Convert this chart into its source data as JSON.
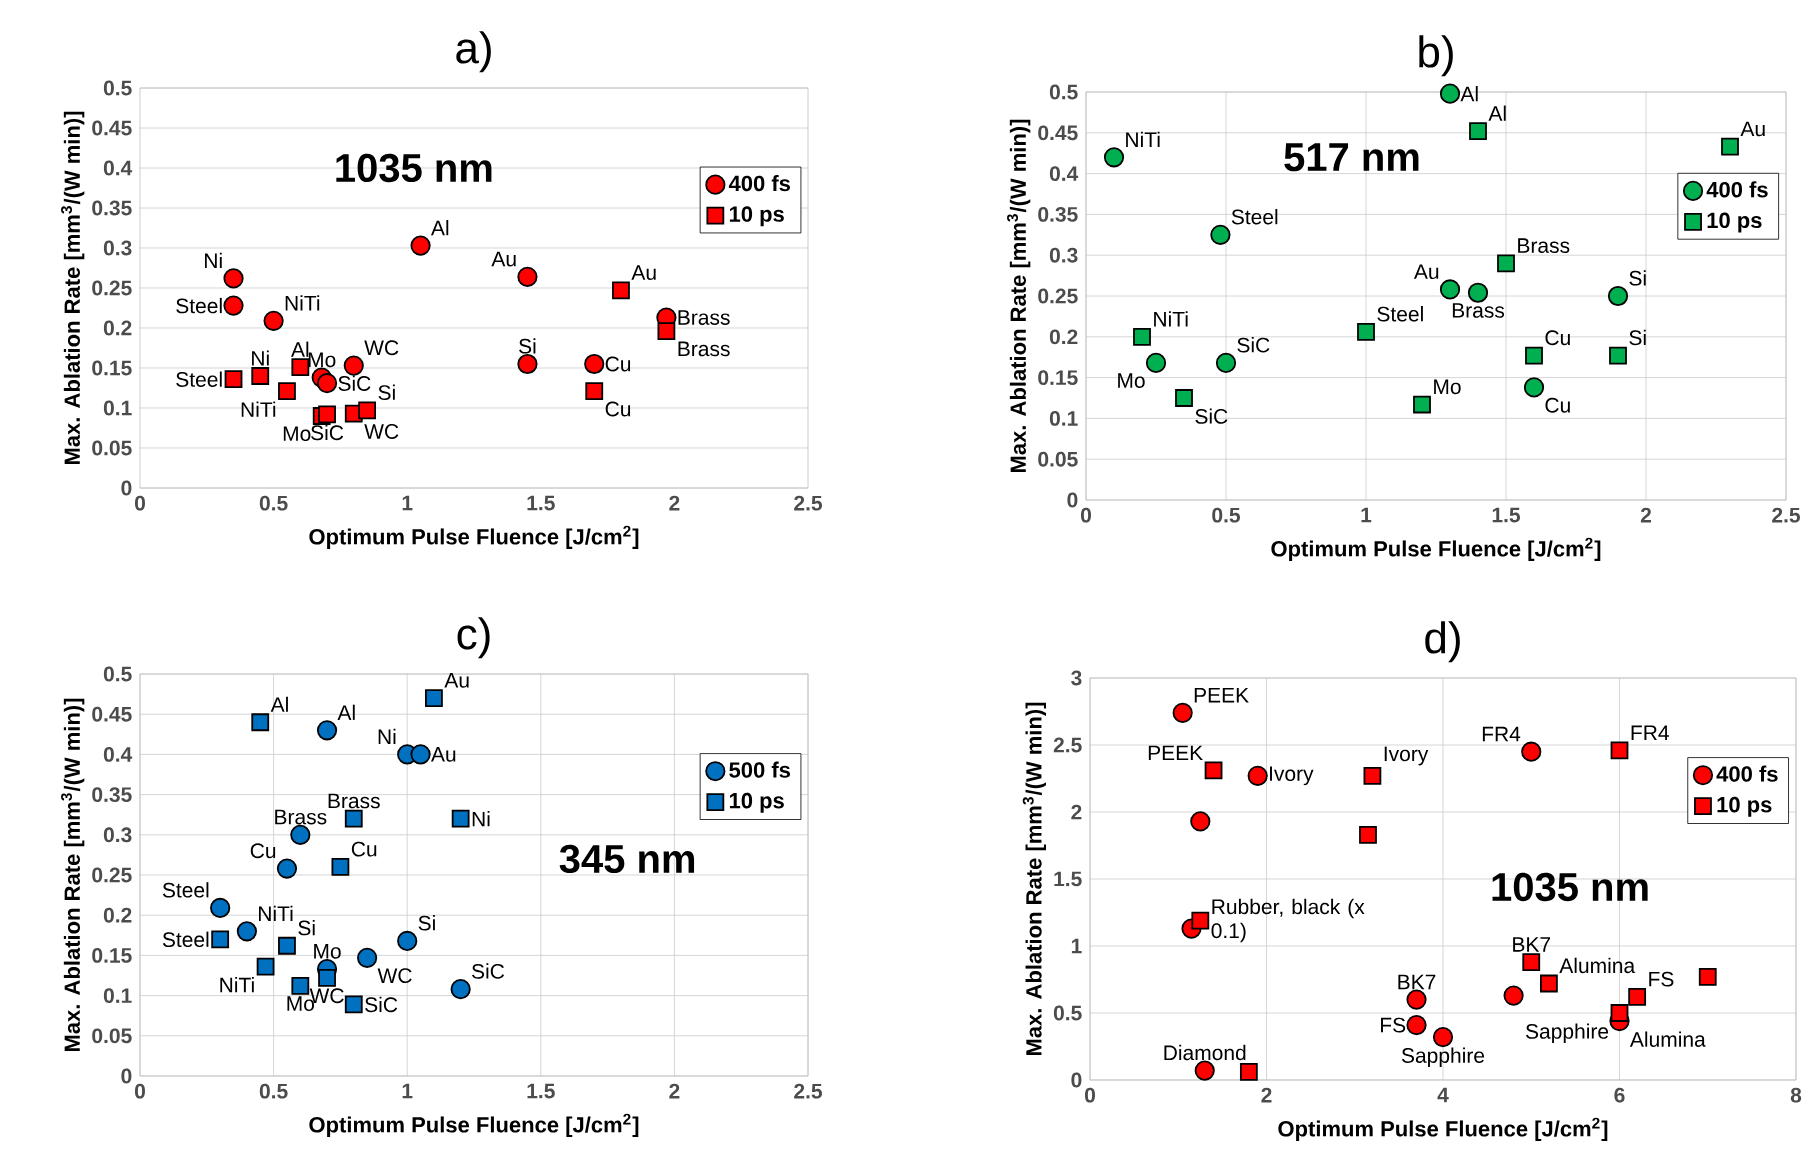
{
  "chart_data": [
    {
      "type": "scatter",
      "title": "a)",
      "xlabel": "Optimum Pulse Fluence [J/cm$^{2}$]",
      "ylabel": "Max. Ablation Rate [mm$^{3}$/(W min)]",
      "xlim": [
        0,
        2.5
      ],
      "ylim": [
        0,
        0.5
      ],
      "xticks": [
        0,
        0.5,
        1,
        1.5,
        2,
        2.5
      ],
      "yticks": [
        0,
        0.05,
        0.1,
        0.15,
        0.2,
        0.25,
        0.3,
        0.35,
        0.4,
        0.45,
        0.5
      ],
      "grid": "y",
      "legend": "right",
      "series": [
        {
          "name": "400 fs",
          "color": "#ff0000",
          "marker": "circle",
          "x": [
            0.35,
            0.35,
            0.5,
            1.05,
            1.45,
            0.68,
            0.7,
            0.8,
            1.45,
            1.7,
            1.97
          ],
          "values": [
            0.262,
            0.228,
            0.209,
            0.303,
            0.264,
            0.138,
            0.131,
            0.153,
            0.155,
            0.155,
            0.213
          ]
        },
        {
          "name": "10 ps",
          "color": "#ff0000",
          "marker": "square",
          "x": [
            0.35,
            0.45,
            0.55,
            0.6,
            0.68,
            0.7,
            0.8,
            0.85,
            1.8,
            1.7,
            1.97
          ],
          "values": [
            0.136,
            0.14,
            0.121,
            0.151,
            0.09,
            0.092,
            0.093,
            0.097,
            0.247,
            0.121,
            0.196
          ]
        }
      ],
      "annotations": [
        "1035 nm",
        {
          "text": "Ni",
          "x": 0.35,
          "y": 0.262
        },
        {
          "text": "Steel",
          "x": 0.35,
          "y": 0.228
        },
        {
          "text": "NiTi",
          "x": 0.5,
          "y": 0.209
        },
        {
          "text": "Al",
          "x": 1.05,
          "y": 0.303
        },
        {
          "text": "Au",
          "x": 1.45,
          "y": 0.264
        },
        {
          "text": "Mo",
          "x": 0.68,
          "y": 0.138
        },
        {
          "text": "SiC",
          "x": 0.7,
          "y": 0.131
        },
        {
          "text": "WC",
          "x": 0.8,
          "y": 0.153
        },
        {
          "text": "Si",
          "x": 1.45,
          "y": 0.155
        },
        {
          "text": "Cu",
          "x": 1.7,
          "y": 0.155
        },
        {
          "text": "Brass",
          "x": 1.97,
          "y": 0.213
        },
        {
          "text": "Steel",
          "x": 0.35,
          "y": 0.136
        },
        {
          "text": "Ni",
          "x": 0.45,
          "y": 0.14
        },
        {
          "text": "NiTi",
          "x": 0.55,
          "y": 0.121
        },
        {
          "text": "Al",
          "x": 0.6,
          "y": 0.151
        },
        {
          "text": "Mo",
          "x": 0.68,
          "y": 0.09
        },
        {
          "text": "SiC",
          "x": 0.7,
          "y": 0.092
        },
        {
          "text": "WC",
          "x": 0.8,
          "y": 0.093
        },
        {
          "text": "Si",
          "x": 0.85,
          "y": 0.097
        },
        {
          "text": "Au",
          "x": 1.8,
          "y": 0.247
        },
        {
          "text": "Cu",
          "x": 1.7,
          "y": 0.121
        },
        {
          "text": "Brass",
          "x": 1.97,
          "y": 0.196
        }
      ]
    },
    {
      "type": "scatter",
      "title": "b)",
      "xlabel": "Optimum Pulse Fluence [J/cm$^{2}$]",
      "ylabel": "Max. Ablation Rate [mm$^{3}$/(W min)]",
      "xlim": [
        0,
        2.5
      ],
      "ylim": [
        0,
        0.5
      ],
      "xticks": [
        0,
        0.5,
        1,
        1.5,
        2,
        2.5
      ],
      "yticks": [
        0,
        0.05,
        0.1,
        0.15,
        0.2,
        0.25,
        0.3,
        0.35,
        0.4,
        0.45,
        0.5
      ],
      "grid": true,
      "legend": "right",
      "series": [
        {
          "name": "400 fs",
          "color": "#00b050",
          "marker": "circle",
          "x": [
            0.1,
            0.48,
            0.25,
            0.5,
            1.3,
            1.3,
            1.4,
            1.6,
            1.9
          ],
          "values": [
            0.42,
            0.325,
            0.168,
            0.168,
            0.498,
            0.258,
            0.254,
            0.138,
            0.25
          ]
        },
        {
          "name": "10 ps",
          "color": "#00b050",
          "marker": "square",
          "x": [
            0.2,
            0.35,
            1.0,
            1.2,
            1.4,
            1.5,
            1.6,
            1.9,
            2.3
          ],
          "values": [
            0.2,
            0.125,
            0.206,
            0.117,
            0.452,
            0.29,
            0.177,
            0.177,
            0.433
          ]
        }
      ],
      "annotations": [
        "517 nm",
        {
          "text": "NiTi",
          "x": 0.1,
          "y": 0.42
        },
        {
          "text": "Steel",
          "x": 0.48,
          "y": 0.325
        },
        {
          "text": "Mo",
          "x": 0.25,
          "y": 0.168
        },
        {
          "text": "SiC",
          "x": 0.5,
          "y": 0.168
        },
        {
          "text": "Al",
          "x": 1.3,
          "y": 0.498
        },
        {
          "text": "Au",
          "x": 1.3,
          "y": 0.258
        },
        {
          "text": "Brass",
          "x": 1.4,
          "y": 0.254
        },
        {
          "text": "Cu",
          "x": 1.6,
          "y": 0.138
        },
        {
          "text": "Si",
          "x": 1.9,
          "y": 0.25
        },
        {
          "text": "NiTi",
          "x": 0.2,
          "y": 0.2
        },
        {
          "text": "SiC",
          "x": 0.35,
          "y": 0.125
        },
        {
          "text": "Steel",
          "x": 1.0,
          "y": 0.206
        },
        {
          "text": "Mo",
          "x": 1.2,
          "y": 0.117
        },
        {
          "text": "Al",
          "x": 1.4,
          "y": 0.452
        },
        {
          "text": "Brass",
          "x": 1.5,
          "y": 0.29
        },
        {
          "text": "Cu",
          "x": 1.6,
          "y": 0.177
        },
        {
          "text": "Si",
          "x": 1.9,
          "y": 0.177
        },
        {
          "text": "Au",
          "x": 2.3,
          "y": 0.433
        }
      ]
    },
    {
      "type": "scatter",
      "title": "c)",
      "xlabel": "Optimum Pulse Fluence [J/cm$^{2}$]",
      "ylabel": "Max. Ablation Rate [mm$^{3}$/(W min)]",
      "xlim": [
        0,
        2.5
      ],
      "ylim": [
        0,
        0.5
      ],
      "xticks": [
        0,
        0.5,
        1,
        1.5,
        2,
        2.5
      ],
      "yticks": [
        0,
        0.05,
        0.1,
        0.15,
        0.2,
        0.25,
        0.3,
        0.35,
        0.4,
        0.45,
        0.5
      ],
      "grid": true,
      "legend": "right",
      "series": [
        {
          "name": "500 fs",
          "color": "#0070c0",
          "marker": "circle",
          "x": [
            0.7,
            1.0,
            1.05,
            0.6,
            0.55,
            0.3,
            0.4,
            1.0,
            0.7,
            0.85,
            1.2
          ],
          "values": [
            0.43,
            0.4,
            0.4,
            0.3,
            0.258,
            0.209,
            0.18,
            0.168,
            0.133,
            0.147,
            0.108
          ]
        },
        {
          "name": "10 ps",
          "color": "#0070c0",
          "marker": "square",
          "x": [
            0.45,
            1.1,
            0.8,
            1.2,
            0.75,
            0.3,
            0.55,
            0.47,
            0.6,
            0.7,
            0.8
          ],
          "values": [
            0.44,
            0.47,
            0.32,
            0.32,
            0.26,
            0.17,
            0.162,
            0.136,
            0.112,
            0.122,
            0.089
          ]
        }
      ],
      "annotations": [
        "345 nm",
        {
          "text": "Al",
          "x": 0.7,
          "y": 0.43
        },
        {
          "text": "Ni",
          "x": 1.0,
          "y": 0.4
        },
        {
          "text": "Au",
          "x": 1.05,
          "y": 0.4
        },
        {
          "text": "Brass",
          "x": 0.6,
          "y": 0.3
        },
        {
          "text": "Cu",
          "x": 0.55,
          "y": 0.258
        },
        {
          "text": "Steel",
          "x": 0.3,
          "y": 0.209
        },
        {
          "text": "NiTi",
          "x": 0.4,
          "y": 0.18
        },
        {
          "text": "Si",
          "x": 1.0,
          "y": 0.168
        },
        {
          "text": "Mo",
          "x": 0.7,
          "y": 0.133
        },
        {
          "text": "WC",
          "x": 0.85,
          "y": 0.147
        },
        {
          "text": "SiC",
          "x": 1.2,
          "y": 0.108
        },
        {
          "text": "Al",
          "x": 0.45,
          "y": 0.44
        },
        {
          "text": "Au",
          "x": 1.1,
          "y": 0.47
        },
        {
          "text": "Brass",
          "x": 0.8,
          "y": 0.32
        },
        {
          "text": "Ni",
          "x": 1.2,
          "y": 0.32
        },
        {
          "text": "Cu",
          "x": 0.75,
          "y": 0.26
        },
        {
          "text": "Steel",
          "x": 0.3,
          "y": 0.17
        },
        {
          "text": "Si",
          "x": 0.55,
          "y": 0.162
        },
        {
          "text": "NiTi",
          "x": 0.47,
          "y": 0.136
        },
        {
          "text": "Mo",
          "x": 0.6,
          "y": 0.112
        },
        {
          "text": "WC",
          "x": 0.7,
          "y": 0.122
        },
        {
          "text": "SiC",
          "x": 0.8,
          "y": 0.089
        }
      ]
    },
    {
      "type": "scatter",
      "title": "d)",
      "xlabel": "Optimum Pulse Fluence [J/cm$^{2}$]",
      "ylabel": "Max. Ablation Rate [mm$^{3}$/(W min)]",
      "xlim": [
        0,
        8
      ],
      "ylim": [
        0,
        3
      ],
      "xticks": [
        0,
        2,
        4,
        6,
        8
      ],
      "yticks": [
        0,
        0.5,
        1,
        1.5,
        2,
        2.5,
        3
      ],
      "grid": true,
      "legend": "right",
      "series": [
        {
          "name": "400 fs",
          "color": "#ff0000",
          "marker": "circle",
          "x": [
            1.05,
            1.9,
            1.25,
            1.15,
            3.7,
            3.7,
            4.0,
            4.8,
            5.0,
            6.0,
            1.3
          ],
          "values": [
            2.74,
            2.27,
            1.93,
            1.13,
            0.6,
            0.41,
            0.32,
            0.63,
            2.45,
            0.44,
            0.07
          ]
        },
        {
          "name": "10 ps",
          "color": "#ff0000",
          "marker": "square",
          "x": [
            1.4,
            3.2,
            3.15,
            1.25,
            6.0,
            5.0,
            5.2,
            6.2,
            6.0,
            7.0,
            1.8
          ],
          "values": [
            2.31,
            2.27,
            1.83,
            1.19,
            2.46,
            0.88,
            0.72,
            0.62,
            0.5,
            0.77,
            0.06
          ]
        }
      ],
      "annotations": [
        "1035 nm",
        {
          "text": "PEEK",
          "x": 1.05,
          "y": 2.74
        },
        {
          "text": "Ivory",
          "x": 1.9,
          "y": 2.27
        },
        {
          "text": "Diamond",
          "x": 1.3,
          "y": 0.07
        },
        {
          "text": "BK7",
          "x": 3.7,
          "y": 0.6
        },
        {
          "text": "FS",
          "x": 3.7,
          "y": 0.41
        },
        {
          "text": "Sapphire",
          "x": 4.0,
          "y": 0.32
        },
        {
          "text": "FR4",
          "x": 5.0,
          "y": 2.45
        },
        {
          "text": "Alumina",
          "x": 6.0,
          "y": 0.44
        },
        {
          "text": "PEEK",
          "x": 1.4,
          "y": 2.31
        },
        {
          "text": "Ivory",
          "x": 3.2,
          "y": 2.27
        },
        {
          "text": "Rubber, black (x 0.1)",
          "x": 1.25,
          "y": 1.19
        },
        {
          "text": "FR4",
          "x": 6.0,
          "y": 2.46
        },
        {
          "text": "BK7",
          "x": 5.0,
          "y": 0.88
        },
        {
          "text": "Alumina",
          "x": 5.2,
          "y": 0.72
        },
        {
          "text": "FS",
          "x": 6.2,
          "y": 0.62
        },
        {
          "text": "Sapphire",
          "x": 6.0,
          "y": 0.5
        }
      ]
    }
  ]
}
